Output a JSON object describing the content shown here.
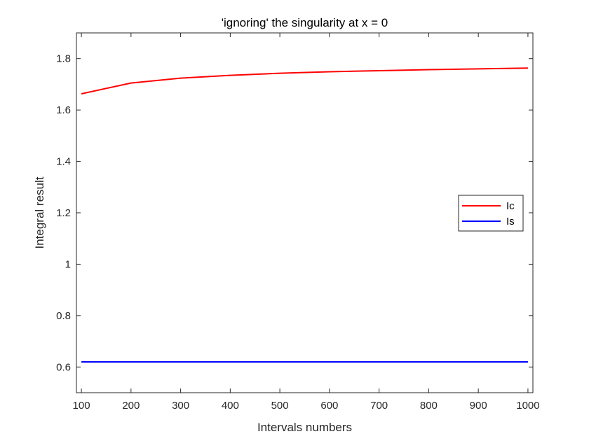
{
  "chart_data": {
    "type": "line",
    "title": "'ignoring' the singularity at x = 0",
    "xlabel": "Intervals numbers",
    "ylabel": "Integral result",
    "xlim": [
      90,
      1010
    ],
    "ylim": [
      0.5,
      1.9
    ],
    "x_ticks": [
      "100",
      "200",
      "300",
      "400",
      "500",
      "600",
      "700",
      "800",
      "900",
      "1000"
    ],
    "y_ticks": [
      "0.6",
      "0.8",
      "1",
      "1.2",
      "1.4",
      "1.6",
      "1.8"
    ],
    "x_tick_values": [
      100,
      200,
      300,
      400,
      500,
      600,
      700,
      800,
      900,
      1000
    ],
    "y_tick_values": [
      0.6,
      0.8,
      1,
      1.2,
      1.4,
      1.6,
      1.8
    ],
    "x": [
      100,
      200,
      300,
      400,
      500,
      600,
      700,
      800,
      900,
      1000
    ],
    "series": [
      {
        "name": "Ic",
        "color": "#ff0000",
        "values": [
          1.663,
          1.705,
          1.724,
          1.735,
          1.743,
          1.749,
          1.753,
          1.757,
          1.76,
          1.763
        ]
      },
      {
        "name": "Is",
        "color": "#0000ff",
        "values": [
          0.6197,
          0.6198,
          0.6198,
          0.6198,
          0.6198,
          0.6198,
          0.6198,
          0.6198,
          0.6198,
          0.6198
        ]
      }
    ],
    "grid": false,
    "legend_position": "right"
  }
}
